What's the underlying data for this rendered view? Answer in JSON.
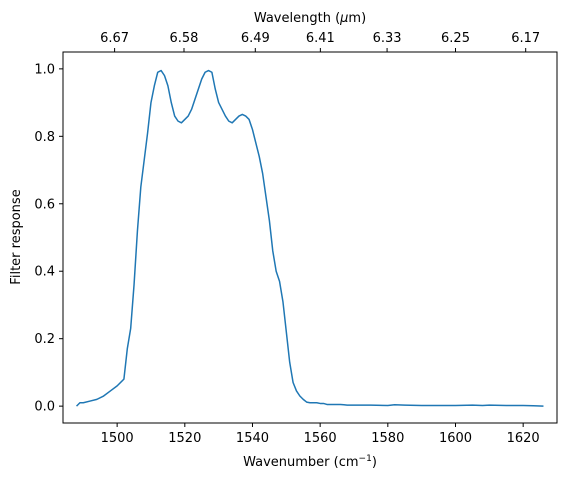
{
  "chart_data": {
    "type": "line",
    "xlabel": "Wavenumber (cm",
    "xlabel_sup": "−1",
    "xlabel_end": ")",
    "ylabel": "Filter response",
    "top_xlabel": "Wavelength (",
    "top_xlabel_mu": "μ",
    "top_xlabel_end": "m)",
    "xlim": [
      1484,
      1630
    ],
    "ylim": [
      -0.05,
      1.05
    ],
    "xticks": [
      1500,
      1520,
      1540,
      1560,
      1580,
      1600,
      1620
    ],
    "xtick_labels": [
      "1500",
      "1520",
      "1540",
      "1560",
      "1580",
      "1600",
      "1620"
    ],
    "yticks": [
      0.0,
      0.2,
      0.4,
      0.6,
      0.8,
      1.0
    ],
    "ytick_labels": [
      "0.0",
      "0.2",
      "0.4",
      "0.6",
      "0.8",
      "1.0"
    ],
    "top_xticks": [
      6.67,
      6.58,
      6.49,
      6.41,
      6.33,
      6.25,
      6.17
    ],
    "top_xtick_labels": [
      "6.67",
      "6.58",
      "6.49",
      "6.41",
      "6.33",
      "6.25",
      "6.17"
    ],
    "grid": false,
    "line_color": "#1f77b4",
    "series": [
      {
        "x": [
          1488,
          1489,
          1490,
          1492,
          1494,
          1496,
          1498,
          1500,
          1502,
          1503,
          1504,
          1505,
          1506,
          1507,
          1508,
          1509,
          1510,
          1511,
          1512,
          1513,
          1514,
          1515,
          1516,
          1517,
          1518,
          1519,
          1520,
          1521,
          1522,
          1523,
          1524,
          1525,
          1526,
          1527,
          1528,
          1529,
          1530,
          1531,
          1532,
          1533,
          1534,
          1535,
          1536,
          1537,
          1538,
          1539,
          1540,
          1541,
          1542,
          1543,
          1544,
          1545,
          1546,
          1547,
          1548,
          1549,
          1550,
          1551,
          1552,
          1553,
          1554,
          1555,
          1556,
          1557,
          1558,
          1559,
          1560,
          1561,
          1562,
          1563,
          1564,
          1565,
          1566,
          1567,
          1568,
          1569,
          1570,
          1572,
          1575,
          1580,
          1582,
          1585,
          1590,
          1595,
          1600,
          1605,
          1608,
          1610,
          1615,
          1620,
          1623,
          1626
        ],
        "y": [
          0.0,
          0.01,
          0.01,
          0.015,
          0.02,
          0.03,
          0.045,
          0.06,
          0.08,
          0.17,
          0.23,
          0.36,
          0.52,
          0.65,
          0.73,
          0.81,
          0.9,
          0.95,
          0.99,
          0.995,
          0.98,
          0.95,
          0.9,
          0.86,
          0.845,
          0.84,
          0.85,
          0.86,
          0.88,
          0.91,
          0.94,
          0.97,
          0.99,
          0.995,
          0.99,
          0.94,
          0.9,
          0.88,
          0.86,
          0.845,
          0.84,
          0.85,
          0.86,
          0.865,
          0.86,
          0.85,
          0.82,
          0.78,
          0.74,
          0.69,
          0.62,
          0.55,
          0.46,
          0.4,
          0.37,
          0.31,
          0.22,
          0.13,
          0.07,
          0.045,
          0.03,
          0.02,
          0.012,
          0.01,
          0.01,
          0.01,
          0.008,
          0.008,
          0.005,
          0.005,
          0.005,
          0.005,
          0.005,
          0.004,
          0.003,
          0.003,
          0.003,
          0.003,
          0.003,
          0.002,
          0.004,
          0.003,
          0.002,
          0.002,
          0.002,
          0.003,
          0.002,
          0.003,
          0.002,
          0.002,
          0.001,
          0.0
        ]
      }
    ]
  }
}
